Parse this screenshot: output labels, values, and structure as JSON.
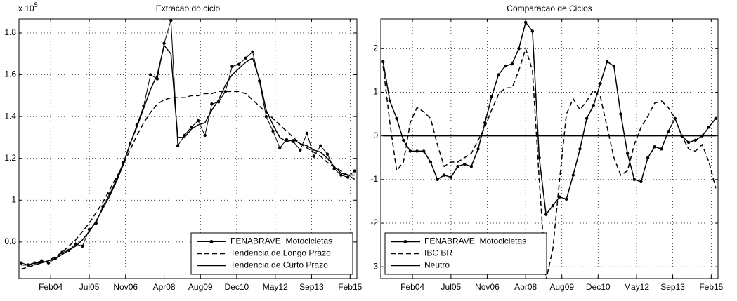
{
  "chart_data": [
    {
      "type": "line",
      "title": "Extracao do ciclo",
      "y_scale": "x 10",
      "y_scale_exponent": "5",
      "x": [
        0,
        3,
        6,
        9,
        12,
        15,
        18,
        21,
        24,
        27,
        30,
        33,
        36,
        39,
        42,
        45,
        48,
        51,
        54,
        57,
        60,
        63,
        66,
        69,
        72,
        75,
        78,
        81,
        84,
        87,
        90,
        93,
        96,
        99,
        102,
        105,
        108,
        111,
        114,
        117,
        120,
        123,
        126,
        129,
        132,
        135,
        138,
        141,
        144,
        147
      ],
      "series": [
        {
          "name": "FENABRAVE  Motocicletas",
          "color": "#000000",
          "style": "solid",
          "line_width": 1,
          "marker": "dot",
          "values": [
            0.7,
            0.69,
            0.7,
            0.71,
            0.7,
            0.72,
            0.75,
            0.76,
            0.79,
            0.78,
            0.86,
            0.89,
            0.97,
            1.03,
            1.1,
            1.18,
            1.27,
            1.36,
            1.45,
            1.6,
            1.58,
            1.75,
            1.86,
            1.26,
            1.31,
            1.35,
            1.38,
            1.31,
            1.46,
            1.47,
            1.52,
            1.64,
            1.65,
            1.68,
            1.71,
            1.57,
            1.4,
            1.33,
            1.25,
            1.29,
            1.28,
            1.24,
            1.32,
            1.21,
            1.26,
            1.22,
            1.15,
            1.12,
            1.11,
            1.14
          ]
        },
        {
          "name": "Tendencia de Longo Prazo",
          "color": "#000000",
          "style": "dashed",
          "line_width": 1.5,
          "marker": "none",
          "values": [
            0.67,
            0.68,
            0.69,
            0.7,
            0.71,
            0.73,
            0.75,
            0.78,
            0.81,
            0.85,
            0.89,
            0.94,
            0.99,
            1.05,
            1.11,
            1.17,
            1.24,
            1.31,
            1.37,
            1.42,
            1.46,
            1.48,
            1.49,
            1.49,
            1.49,
            1.5,
            1.5,
            1.51,
            1.51,
            1.52,
            1.52,
            1.52,
            1.52,
            1.51,
            1.48,
            1.45,
            1.42,
            1.39,
            1.36,
            1.33,
            1.3,
            1.27,
            1.25,
            1.23,
            1.21,
            1.18,
            1.16,
            1.14,
            1.12,
            1.1
          ]
        },
        {
          "name": "Tendencia de Curto Prazo",
          "color": "#000000",
          "style": "solid",
          "line_width": 1.5,
          "marker": "none",
          "values": [
            0.69,
            0.69,
            0.7,
            0.7,
            0.71,
            0.72,
            0.74,
            0.76,
            0.78,
            0.81,
            0.85,
            0.9,
            0.96,
            1.02,
            1.09,
            1.17,
            1.27,
            1.35,
            1.44,
            1.53,
            1.6,
            1.74,
            1.7,
            1.3,
            1.3,
            1.34,
            1.36,
            1.37,
            1.43,
            1.48,
            1.55,
            1.6,
            1.63,
            1.66,
            1.68,
            1.58,
            1.43,
            1.36,
            1.3,
            1.28,
            1.29,
            1.27,
            1.26,
            1.24,
            1.23,
            1.2,
            1.16,
            1.13,
            1.12,
            1.12
          ]
        }
      ],
      "xlim": [
        -1,
        148
      ],
      "ylim": [
        0.625,
        1.867
      ],
      "xticks": [
        {
          "value": 13,
          "label": "Feb04"
        },
        {
          "value": 30,
          "label": "Jul05"
        },
        {
          "value": 46,
          "label": "Nov06"
        },
        {
          "value": 63,
          "label": "Apr08"
        },
        {
          "value": 79,
          "label": "Aug09"
        },
        {
          "value": 95,
          "label": "Dec10"
        },
        {
          "value": 112,
          "label": "May12"
        },
        {
          "value": 128,
          "label": "Sep13"
        },
        {
          "value": 145,
          "label": "Feb15"
        }
      ],
      "yticks": [
        0.8,
        1,
        1.2,
        1.4,
        1.6,
        1.8
      ],
      "grid": true,
      "legend": "southeast"
    },
    {
      "type": "line",
      "title": "Comparacao de Ciclos",
      "x": [
        0,
        3,
        6,
        9,
        12,
        15,
        18,
        21,
        24,
        27,
        30,
        33,
        36,
        39,
        42,
        45,
        48,
        51,
        54,
        57,
        60,
        63,
        66,
        69,
        72,
        75,
        78,
        81,
        84,
        87,
        90,
        93,
        96,
        99,
        102,
        105,
        108,
        111,
        114,
        117,
        120,
        123,
        126,
        129,
        132,
        135,
        138,
        141,
        144,
        147
      ],
      "series": [
        {
          "name": "FENABRAVE  Motocicletas",
          "color": "#000000",
          "style": "solid",
          "line_width": 1.5,
          "marker": "dot",
          "values": [
            1.7,
            0.8,
            0.4,
            -0.1,
            -0.35,
            -0.35,
            -0.35,
            -0.6,
            -1.0,
            -0.9,
            -0.95,
            -0.7,
            -0.65,
            -0.7,
            -0.3,
            0.3,
            0.9,
            1.4,
            1.6,
            1.65,
            2.0,
            2.6,
            2.4,
            -0.5,
            -1.8,
            -1.6,
            -1.4,
            -1.45,
            -0.9,
            -0.3,
            0.4,
            0.7,
            1.2,
            1.7,
            1.6,
            0.5,
            -0.4,
            -1.0,
            -1.05,
            -0.5,
            -0.25,
            -0.3,
            0.1,
            0.4,
            0.0,
            -0.15,
            -0.1,
            0.0,
            0.2,
            0.4
          ]
        },
        {
          "name": "IBC BR",
          "color": "#000000",
          "style": "dashed",
          "line_width": 1.5,
          "marker": "none",
          "values": [
            1.6,
            0.3,
            -0.8,
            -0.6,
            0.3,
            0.65,
            0.55,
            0.4,
            -0.2,
            -0.7,
            -0.6,
            -0.6,
            -0.5,
            -0.4,
            -0.1,
            0.2,
            0.6,
            0.95,
            1.1,
            1.1,
            1.5,
            2.0,
            1.5,
            -1.0,
            -3.3,
            -2.6,
            -1.0,
            0.5,
            0.85,
            0.6,
            0.8,
            1.05,
            0.9,
            0.2,
            -0.5,
            -0.9,
            -0.8,
            -0.2,
            0.2,
            0.45,
            0.75,
            0.8,
            0.65,
            0.4,
            0.0,
            -0.3,
            -0.35,
            -0.2,
            -0.6,
            -1.2
          ]
        },
        {
          "name": "Neutro",
          "color": "#000000",
          "style": "solid",
          "line_width": 1.5,
          "marker": "none",
          "values": [
            0,
            0,
            0,
            0,
            0,
            0,
            0,
            0,
            0,
            0,
            0,
            0,
            0,
            0,
            0,
            0,
            0,
            0,
            0,
            0,
            0,
            0,
            0,
            0,
            0,
            0,
            0,
            0,
            0,
            0,
            0,
            0,
            0,
            0,
            0,
            0,
            0,
            0,
            0,
            0,
            0,
            0,
            0,
            0,
            0,
            0,
            0,
            0,
            0,
            0
          ]
        }
      ],
      "xlim": [
        -1,
        148
      ],
      "ylim": [
        -3.27,
        2.68
      ],
      "xticks": [
        {
          "value": 13,
          "label": "Feb04"
        },
        {
          "value": 30,
          "label": "Jul05"
        },
        {
          "value": 46,
          "label": "Nov06"
        },
        {
          "value": 63,
          "label": "Apr08"
        },
        {
          "value": 79,
          "label": "Aug09"
        },
        {
          "value": 95,
          "label": "Dec10"
        },
        {
          "value": 112,
          "label": "May12"
        },
        {
          "value": 128,
          "label": "Sep13"
        },
        {
          "value": 145,
          "label": "Feb15"
        }
      ],
      "yticks": [
        -3,
        -2,
        -1,
        0,
        1,
        2
      ],
      "grid": true,
      "legend": "southwest"
    }
  ]
}
